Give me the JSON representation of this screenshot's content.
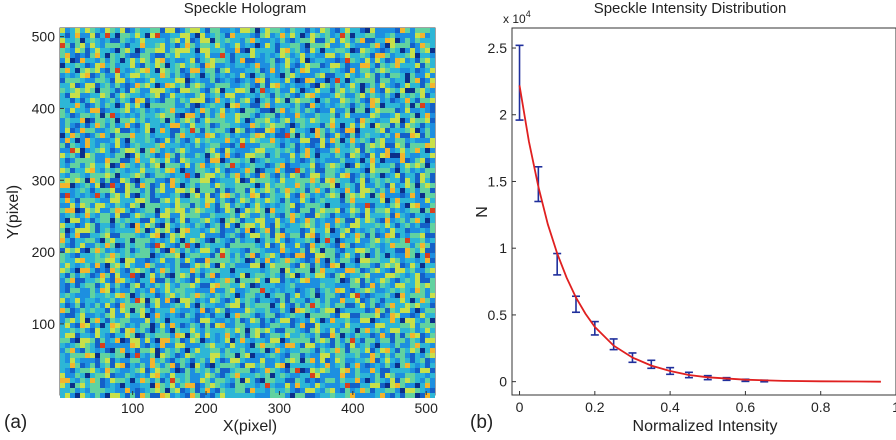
{
  "panels": {
    "a_label": "(a)",
    "b_label": "(b)"
  },
  "chart_data": [
    {
      "type": "heatmap",
      "title": "Speckle Hologram",
      "xlabel": "X(pixel)",
      "ylabel": "Y(pixel)",
      "xlim": [
        1,
        512
      ],
      "ylim": [
        1,
        512
      ],
      "xticks": [
        100,
        200,
        300,
        400,
        500
      ],
      "yticks": [
        100,
        200,
        300,
        400,
        500
      ],
      "colormap": [
        "#0b2f8a",
        "#1460c8",
        "#1d8fe0",
        "#2db6d6",
        "#61d2a0",
        "#c8e04a",
        "#f2b52e",
        "#d8401e"
      ]
    },
    {
      "type": "scatter",
      "title": "Speckle Intensity Distribution",
      "xlabel": "Normalized Intensity",
      "ylabel": "N",
      "y_multiplier": "x 10",
      "y_exponent": "4",
      "xlim": [
        -0.02,
        1.0
      ],
      "ylim": [
        -0.1,
        2.65
      ],
      "xticks": [
        "0",
        "0.2",
        "0.4",
        "0.6",
        "0.8",
        "1"
      ],
      "xtick_values": [
        0,
        0.2,
        0.4,
        0.6,
        0.8,
        1
      ],
      "yticks": [
        "0",
        "0.5",
        "1",
        "1.5",
        "2",
        "2.5"
      ],
      "ytick_values": [
        0,
        0.5,
        1,
        1.5,
        2,
        2.5
      ],
      "series": [
        {
          "kind": "errorbar",
          "color": "#1f2f9c",
          "x": [
            0,
            0.05,
            0.1,
            0.15,
            0.2,
            0.25,
            0.3,
            0.35,
            0.4,
            0.45,
            0.5,
            0.55,
            0.6,
            0.65
          ],
          "y": [
            2.24,
            1.48,
            0.88,
            0.58,
            0.4,
            0.28,
            0.18,
            0.13,
            0.08,
            0.05,
            0.03,
            0.02,
            0.01,
            0.005
          ],
          "err": [
            0.28,
            0.13,
            0.08,
            0.06,
            0.05,
            0.04,
            0.035,
            0.03,
            0.025,
            0.02,
            0.015,
            0.01,
            0.008,
            0.006
          ]
        },
        {
          "kind": "line",
          "color": "#e02020",
          "x": [
            0,
            0.025,
            0.05,
            0.075,
            0.1,
            0.125,
            0.15,
            0.175,
            0.2,
            0.25,
            0.3,
            0.35,
            0.4,
            0.45,
            0.5,
            0.6,
            0.7,
            0.8,
            0.9,
            0.96
          ],
          "y": [
            2.22,
            1.8,
            1.46,
            1.18,
            0.96,
            0.78,
            0.63,
            0.51,
            0.41,
            0.27,
            0.18,
            0.12,
            0.08,
            0.05,
            0.033,
            0.015,
            0.006,
            0.003,
            0.001,
            0.0
          ]
        }
      ]
    }
  ]
}
